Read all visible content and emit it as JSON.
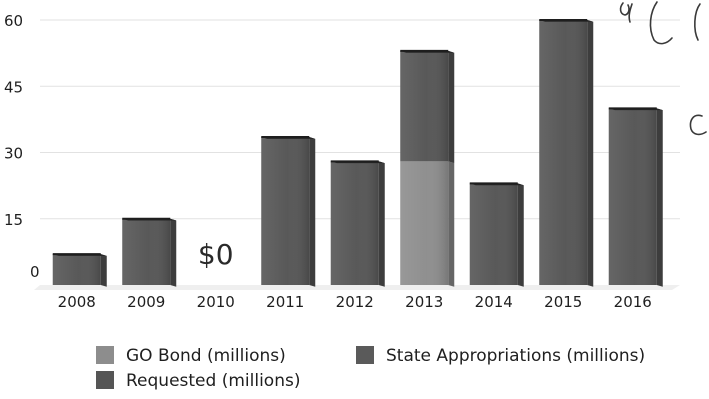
{
  "chart_data": {
    "type": "bar",
    "stacked": true,
    "categories": [
      "2008",
      "2009",
      "2010",
      "2011",
      "2012",
      "2013",
      "2014",
      "2015",
      "2016"
    ],
    "y_ticks": [
      "0",
      "15",
      "30",
      "45",
      "60"
    ],
    "ylim": [
      0,
      60
    ],
    "grid": true,
    "series": [
      {
        "name": "GO Bond (millions)",
        "color": "#8d8d8d",
        "values": [
          0,
          0,
          0,
          0,
          0,
          28,
          0,
          0,
          0
        ]
      },
      {
        "name": "State Appropriations (millions)",
        "color": "#5a5a5a",
        "values": [
          0,
          0,
          0,
          0,
          0,
          0,
          0,
          0,
          0
        ]
      },
      {
        "name": "Requested (millions)",
        "color": "#555555",
        "values": [
          7,
          15,
          0,
          33.5,
          28,
          25,
          23,
          60,
          40
        ]
      }
    ],
    "annotations": [
      {
        "text": "$0",
        "category": "2010"
      }
    ],
    "legend_position": "bottom"
  }
}
